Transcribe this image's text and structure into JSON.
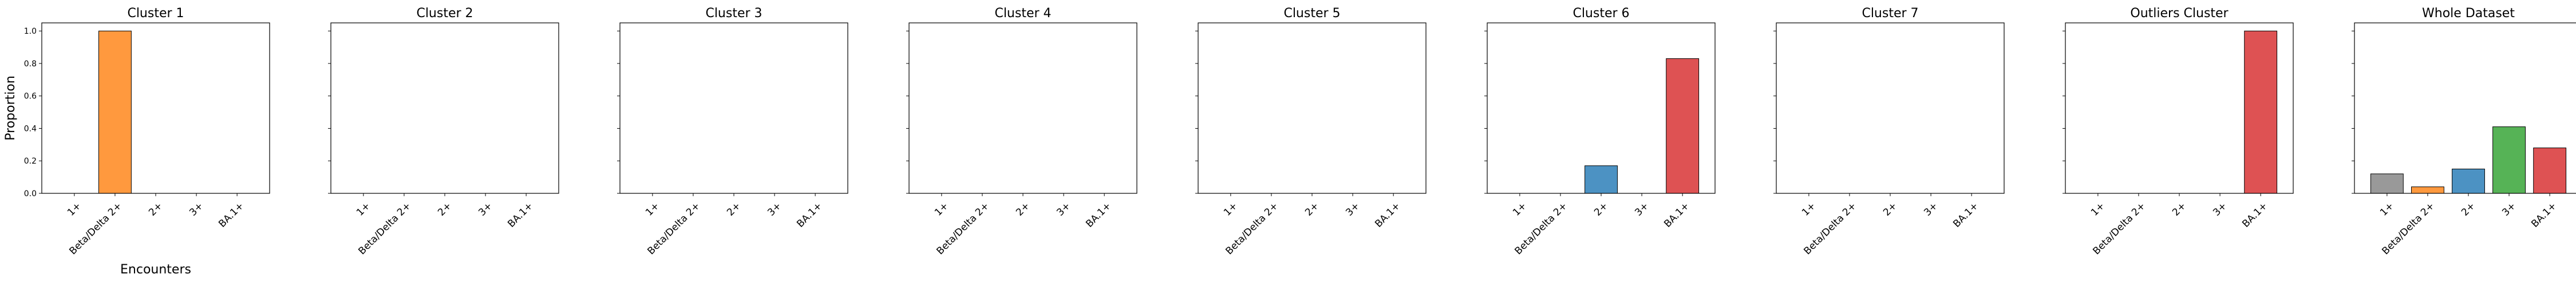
{
  "chart_data": [
    {
      "type": "bar",
      "title": "Cluster 1",
      "categories": [
        "1+",
        "Beta/Delta 2+",
        "2+",
        "3+",
        "BA.1+"
      ],
      "values": [
        0,
        1.0,
        0,
        0,
        0
      ],
      "colors": [
        "#7f7f7f",
        "#ff7f0e",
        "#1f77b4",
        "#2ca02c",
        "#d62728"
      ],
      "ylabel": "Proportion",
      "xlabel": "Encounters",
      "ylim": [
        0,
        1.05
      ],
      "yticks": [
        "0.0",
        "0.2",
        "0.4",
        "0.6",
        "0.8",
        "1.0"
      ]
    },
    {
      "type": "bar",
      "title": "Cluster 2",
      "categories": [
        "1+",
        "Beta/Delta 2+",
        "2+",
        "3+",
        "BA.1+"
      ],
      "values": [
        0,
        0,
        0,
        0,
        0
      ],
      "colors": [
        "#7f7f7f",
        "#ff7f0e",
        "#1f77b4",
        "#2ca02c",
        "#d62728"
      ],
      "ylim": [
        0,
        1.05
      ]
    },
    {
      "type": "bar",
      "title": "Cluster 3",
      "categories": [
        "1+",
        "Beta/Delta 2+",
        "2+",
        "3+",
        "BA.1+"
      ],
      "values": [
        0,
        0,
        0,
        0,
        0
      ],
      "colors": [
        "#7f7f7f",
        "#ff7f0e",
        "#1f77b4",
        "#2ca02c",
        "#d62728"
      ],
      "ylim": [
        0,
        1.05
      ]
    },
    {
      "type": "bar",
      "title": "Cluster 4",
      "categories": [
        "1+",
        "Beta/Delta 2+",
        "2+",
        "3+",
        "BA.1+"
      ],
      "values": [
        0,
        0,
        0,
        0,
        0
      ],
      "colors": [
        "#7f7f7f",
        "#ff7f0e",
        "#1f77b4",
        "#2ca02c",
        "#d62728"
      ],
      "ylim": [
        0,
        1.05
      ]
    },
    {
      "type": "bar",
      "title": "Cluster 5",
      "categories": [
        "1+",
        "Beta/Delta 2+",
        "2+",
        "3+",
        "BA.1+"
      ],
      "values": [
        0,
        0,
        0,
        0,
        0
      ],
      "colors": [
        "#7f7f7f",
        "#ff7f0e",
        "#1f77b4",
        "#2ca02c",
        "#d62728"
      ],
      "ylim": [
        0,
        1.05
      ]
    },
    {
      "type": "bar",
      "title": "Cluster 6",
      "categories": [
        "1+",
        "Beta/Delta 2+",
        "2+",
        "3+",
        "BA.1+"
      ],
      "values": [
        0,
        0,
        0.17,
        0,
        0.83
      ],
      "colors": [
        "#7f7f7f",
        "#ff7f0e",
        "#1f77b4",
        "#2ca02c",
        "#d62728"
      ],
      "ylim": [
        0,
        1.05
      ]
    },
    {
      "type": "bar",
      "title": "Cluster 7",
      "categories": [
        "1+",
        "Beta/Delta 2+",
        "2+",
        "3+",
        "BA.1+"
      ],
      "values": [
        0,
        0,
        0,
        0,
        0
      ],
      "colors": [
        "#7f7f7f",
        "#ff7f0e",
        "#1f77b4",
        "#2ca02c",
        "#d62728"
      ],
      "ylim": [
        0,
        1.05
      ]
    },
    {
      "type": "bar",
      "title": "Outliers Cluster",
      "categories": [
        "1+",
        "Beta/Delta 2+",
        "2+",
        "3+",
        "BA.1+"
      ],
      "values": [
        0,
        0,
        0,
        0,
        1.0
      ],
      "colors": [
        "#7f7f7f",
        "#ff7f0e",
        "#1f77b4",
        "#2ca02c",
        "#d62728"
      ],
      "ylim": [
        0,
        1.05
      ]
    },
    {
      "type": "bar",
      "title": "Whole Dataset",
      "categories": [
        "1+",
        "Beta/Delta 2+",
        "2+",
        "3+",
        "BA.1+"
      ],
      "values": [
        0.12,
        0.04,
        0.15,
        0.41,
        0.28
      ],
      "colors": [
        "#7f7f7f",
        "#ff7f0e",
        "#1f77b4",
        "#2ca02c",
        "#d62728"
      ],
      "ylim": [
        0,
        1.05
      ]
    }
  ]
}
